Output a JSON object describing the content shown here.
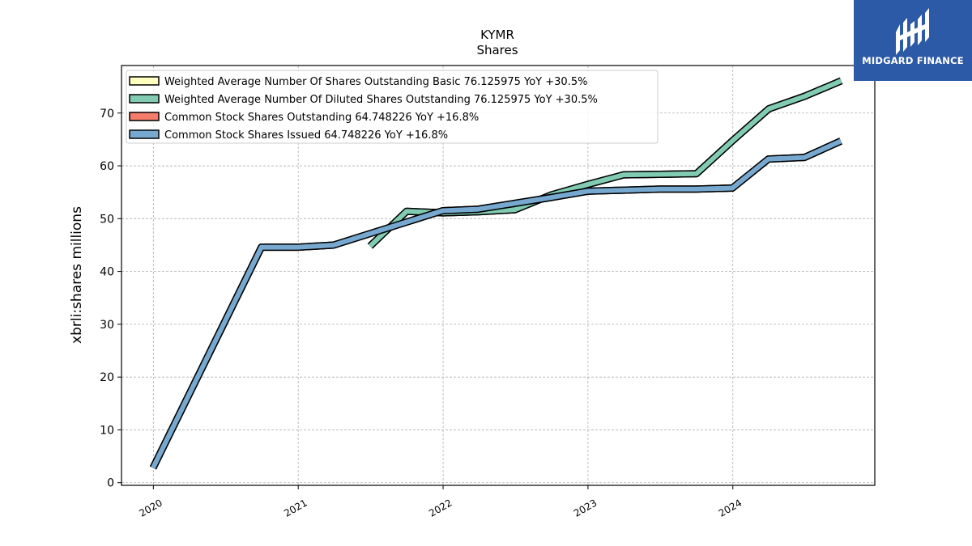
{
  "logo": {
    "text": "MIDGARD FINANCE"
  },
  "chart_data": {
    "type": "line",
    "title": "KYMR",
    "subtitle": "Shares",
    "ylabel": "xbrli:shares millions",
    "xlabel": "",
    "xlim": [
      2019.78,
      2024.98
    ],
    "ylim": [
      -0.5,
      79
    ],
    "x_ticks": [
      "2020",
      "2021",
      "2022",
      "2023",
      "2024"
    ],
    "y_ticks": [
      0,
      10,
      20,
      30,
      40,
      50,
      60,
      70
    ],
    "grid": true,
    "legend_position": "top-left",
    "series": [
      {
        "name": "Weighted Average Number Of Shares Outstanding Basic  76.125975 YoY +30.5%",
        "color": "#ffffbf",
        "points": [
          [
            "2021-07-01",
            44.8
          ],
          [
            "2021-10-01",
            51.4
          ],
          [
            "2022-01-01",
            51.1
          ],
          [
            "2022-04-01",
            51.3
          ],
          [
            "2022-07-01",
            51.7
          ],
          [
            "2022-10-01",
            54.5
          ],
          [
            "2023-01-01",
            56.5
          ],
          [
            "2023-04-01",
            58.3
          ],
          [
            "2023-07-01",
            58.4
          ],
          [
            "2023-10-01",
            58.5
          ],
          [
            "2024-01-01",
            64.8
          ],
          [
            "2024-04-01",
            70.8
          ],
          [
            "2024-07-01",
            73.2
          ],
          [
            "2024-10-01",
            76.1
          ]
        ]
      },
      {
        "name": "Weighted Average Number Of Diluted Shares Outstanding  76.125975 YoY +30.5%",
        "color": "#80cbb1",
        "points": [
          [
            "2021-07-01",
            44.8
          ],
          [
            "2021-10-01",
            51.4
          ],
          [
            "2022-01-01",
            51.1
          ],
          [
            "2022-04-01",
            51.3
          ],
          [
            "2022-07-01",
            51.7
          ],
          [
            "2022-10-01",
            54.5
          ],
          [
            "2023-01-01",
            56.5
          ],
          [
            "2023-04-01",
            58.3
          ],
          [
            "2023-07-01",
            58.4
          ],
          [
            "2023-10-01",
            58.5
          ],
          [
            "2024-01-01",
            64.8
          ],
          [
            "2024-04-01",
            70.8
          ],
          [
            "2024-07-01",
            73.2
          ],
          [
            "2024-10-01",
            76.1
          ]
        ]
      },
      {
        "name": "Common Stock Shares Outstanding  64.748226 YoY +16.8%",
        "color": "#f47c6b",
        "points": [
          [
            "2019-12-31",
            2.8
          ],
          [
            "2020-09-30",
            44.6
          ],
          [
            "2020-12-31",
            44.6
          ],
          [
            "2021-03-31",
            45.0
          ],
          [
            "2021-12-31",
            51.5
          ],
          [
            "2022-03-31",
            51.8
          ],
          [
            "2022-09-30",
            54.0
          ],
          [
            "2022-12-31",
            55.2
          ],
          [
            "2023-03-31",
            55.4
          ],
          [
            "2023-06-30",
            55.6
          ],
          [
            "2023-09-30",
            55.6
          ],
          [
            "2023-12-31",
            55.8
          ],
          [
            "2024-03-31",
            61.3
          ],
          [
            "2024-06-30",
            61.6
          ],
          [
            "2024-09-30",
            64.7
          ]
        ]
      },
      {
        "name": "Common Stock Shares Issued  64.748226 YoY +16.8%",
        "color": "#76a8d0",
        "points": [
          [
            "2019-12-31",
            2.8
          ],
          [
            "2020-09-30",
            44.6
          ],
          [
            "2020-12-31",
            44.6
          ],
          [
            "2021-03-31",
            45.0
          ],
          [
            "2021-12-31",
            51.5
          ],
          [
            "2022-03-31",
            51.8
          ],
          [
            "2022-09-30",
            54.0
          ],
          [
            "2022-12-31",
            55.2
          ],
          [
            "2023-03-31",
            55.4
          ],
          [
            "2023-06-30",
            55.6
          ],
          [
            "2023-09-30",
            55.6
          ],
          [
            "2023-12-31",
            55.8
          ],
          [
            "2024-03-31",
            61.3
          ],
          [
            "2024-06-30",
            61.6
          ],
          [
            "2024-09-30",
            64.7
          ]
        ]
      }
    ]
  }
}
